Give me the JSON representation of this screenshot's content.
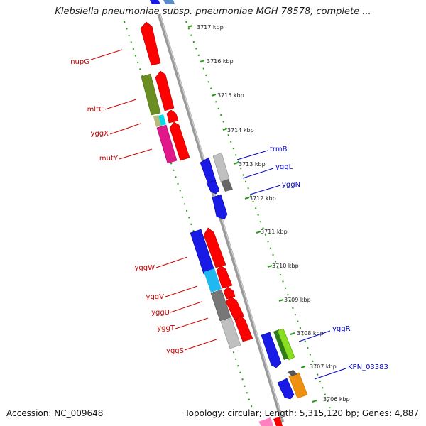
{
  "title": "Klebsiella pneumoniae subsp. pneumoniae MGH 78578, complete ...",
  "footer": {
    "accession": "Accession: NC_009648",
    "summary": "Topology: circular; Length: 5,315,120 bp; Genes: 4,887"
  },
  "colors": {
    "backbone": "#8a8a8a",
    "dotted_track": "#2e9a1a",
    "left_label": "#cc0000",
    "right_label": "#0000cc"
  },
  "scale_ticks": [
    "3717 kbp",
    "3716 kbp",
    "3715 kbp",
    "3714 kbp",
    "3713 kbp",
    "3712 kbp",
    "3711 kbp",
    "3710 kbp",
    "3709 kbp",
    "3708 kbp",
    "3707 kbp",
    "3706 kbp"
  ],
  "left_gene_labels": [
    "nupG",
    "mltC",
    "yggX",
    "mutY",
    "yggW",
    "yggV",
    "yggU",
    "yggT",
    "yggS"
  ],
  "right_gene_labels": [
    "trmB",
    "yggL",
    "yggN",
    "yggR",
    "KPN_03383"
  ],
  "feature_colors": [
    "#ff0000",
    "#6b8e23",
    "#00d8e8",
    "#e0188a",
    "#1a1ae6",
    "#20b8f0",
    "#777777",
    "#c0c0c0",
    "#f09010",
    "#88e020",
    "#b8b87a",
    "#ff80c0"
  ]
}
